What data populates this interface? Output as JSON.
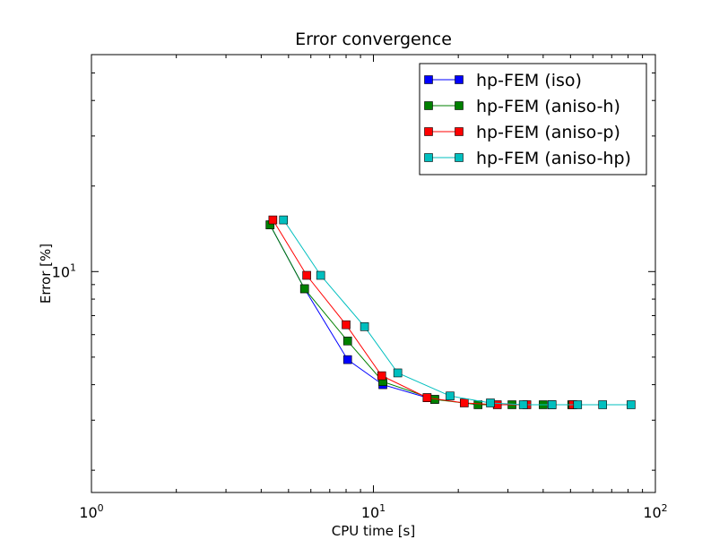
{
  "chart_data": {
    "type": "line",
    "title": "Error convergence",
    "xlabel": "CPU time [s]",
    "ylabel": "Error [%]",
    "xscale": "log",
    "yscale": "log",
    "xlim": [
      1,
      100
    ],
    "ylim": [
      1.67,
      58
    ],
    "x_tick_labels": [
      "10^0",
      "10^1",
      "10^2"
    ],
    "y_tick_labels": [
      "10^1"
    ],
    "legend_position": "top-right",
    "grid": false,
    "series": [
      {
        "name": "hp-FEM (iso)",
        "color": "#0000ff",
        "x": [
          4.3,
          5.7,
          8.1,
          10.8,
          15.5,
          16.5
        ],
        "y": [
          14.6,
          8.7,
          4.9,
          4.0,
          3.6,
          3.55
        ]
      },
      {
        "name": "hp-FEM (aniso-h)",
        "color": "#008000",
        "x": [
          4.3,
          5.7,
          8.1,
          10.8,
          16.5,
          23.5,
          31.0,
          40.0,
          50.5
        ],
        "y": [
          14.6,
          8.7,
          5.7,
          4.1,
          3.55,
          3.4,
          3.4,
          3.4,
          3.4
        ]
      },
      {
        "name": "hp-FEM (aniso-p)",
        "color": "#ff0000",
        "x": [
          4.4,
          5.8,
          8.0,
          10.7,
          15.5,
          21.0,
          27.5,
          35.0,
          43.0,
          51.0
        ],
        "y": [
          15.2,
          9.7,
          6.5,
          4.3,
          3.6,
          3.45,
          3.4,
          3.4,
          3.4,
          3.4
        ]
      },
      {
        "name": "hp-FEM (aniso-hp)",
        "color": "#00bfbf",
        "x": [
          4.8,
          6.5,
          9.3,
          12.2,
          18.7,
          26.0,
          34.0,
          43.0,
          53.0,
          65.0,
          82.0
        ],
        "y": [
          15.2,
          9.7,
          6.4,
          4.4,
          3.65,
          3.45,
          3.4,
          3.4,
          3.4,
          3.4,
          3.4
        ]
      }
    ]
  }
}
